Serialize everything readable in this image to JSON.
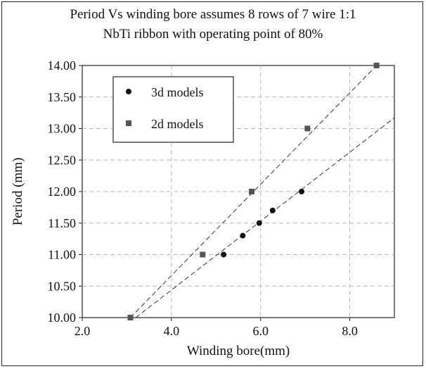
{
  "chart_data": {
    "type": "scatter",
    "title": "Period Vs winding bore assumes 8 rows of  7 wire 1:1",
    "subtitle": "NbTi ribbon with operating point of 80%",
    "xlabel": "Winding bore(mm)",
    "ylabel": "Period (mm)",
    "xlim": [
      2.0,
      9.0
    ],
    "ylim": [
      10.0,
      14.0
    ],
    "xticks": [
      2.0,
      4.0,
      6.0,
      8.0
    ],
    "xtick_labels": [
      "2.0",
      "4.0",
      "6.0",
      "8.0"
    ],
    "yticks": [
      10.0,
      10.5,
      11.0,
      11.5,
      12.0,
      12.5,
      13.0,
      13.5,
      14.0
    ],
    "ytick_labels": [
      "10.00",
      "10.50",
      "11.00",
      "11.50",
      "12.00",
      "12.50",
      "13.00",
      "13.50",
      "14.00"
    ],
    "grid": true,
    "legend_position": "top-left",
    "series": [
      {
        "name": "3d models",
        "marker": "circle",
        "color": "#111111",
        "x": [
          5.17,
          5.6,
          5.97,
          6.27,
          6.92
        ],
        "y": [
          11.0,
          11.3,
          11.5,
          11.7,
          12.0
        ],
        "trendline": {
          "x": [
            3.2,
            9.0
          ],
          "y": [
            10.0,
            13.17
          ]
        }
      },
      {
        "name": "2d models",
        "marker": "square",
        "color": "#555555",
        "x": [
          3.08,
          4.7,
          5.8,
          7.05,
          8.6
        ],
        "y": [
          10.0,
          11.0,
          12.0,
          13.0,
          14.0
        ],
        "trendline": {
          "x": [
            3.08,
            8.6
          ],
          "y": [
            10.0,
            14.0
          ]
        }
      }
    ]
  }
}
